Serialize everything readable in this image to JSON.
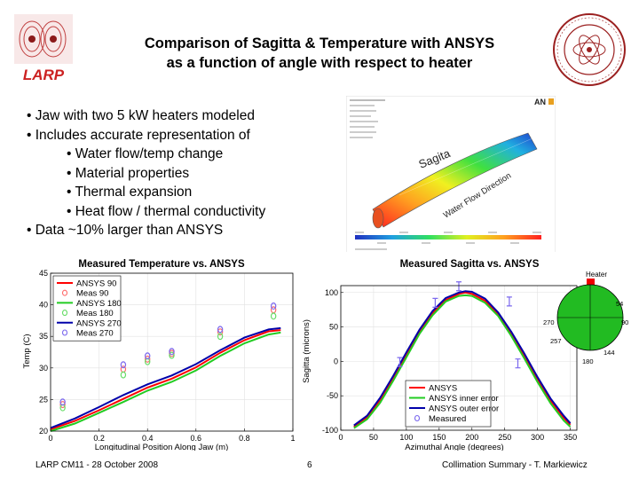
{
  "slide": {
    "title_line1": "Comparison of Sagitta & Temperature with ANSYS",
    "title_line2": "as a function of angle with respect to heater",
    "logo_text": "LARP",
    "bullets": [
      {
        "level": 1,
        "text": "• Jaw with two 5 kW heaters modeled"
      },
      {
        "level": 1,
        "text": "• Includes accurate representation of"
      },
      {
        "level": 2,
        "text": "• Water flow/temp change"
      },
      {
        "level": 2,
        "text": "• Material properties"
      },
      {
        "level": 2,
        "text": "• Thermal expansion"
      },
      {
        "level": 2,
        "text": "• Heat flow / thermal conductivity"
      },
      {
        "level": 1,
        "text": "• Data ~10% larger than ANSYS"
      }
    ],
    "footer_left": "LARP CM11 -  28 October 2008",
    "footer_page": "6",
    "footer_right": "Collimation Summary -   T. Markiewicz"
  },
  "ansys_image": {
    "brand": "AN",
    "label_sagitta": "Sagita",
    "label_flow": "Water Flow Direction"
  },
  "polar_inset": {
    "label_top": "Heater",
    "labels": [
      "54",
      "90",
      "270",
      "257",
      "144",
      "180"
    ]
  },
  "colors": {
    "ansys_red": "#ff0000",
    "meas_red": "#ff6a6a",
    "ansys_green": "#22cc22",
    "meas_green": "#66dd66",
    "ansys_blue": "#0000aa",
    "meas_purple": "#7b68ee",
    "slide_red": "#cc2222"
  },
  "chart_data": [
    {
      "type": "line",
      "title": "Measured Temperature  vs. ANSYS",
      "xlabel": "Longitudinal Position Along Jaw (m)",
      "ylabel": "Temp (C)",
      "xlim": [
        0,
        1
      ],
      "ylim": [
        20,
        45
      ],
      "xticks": [
        "0",
        "0.2",
        "0.4",
        "0.6",
        "0.8",
        "1"
      ],
      "yticks": [
        "20",
        "25",
        "30",
        "35",
        "40",
        "45"
      ],
      "legend_position": "top-left",
      "series": [
        {
          "name": "ANSYS 90",
          "style": "line",
          "color": "#ff0000",
          "x": [
            0,
            0.1,
            0.2,
            0.3,
            0.4,
            0.5,
            0.6,
            0.7,
            0.8,
            0.9,
            0.95
          ],
          "y": [
            20.3,
            21.6,
            23.3,
            25.1,
            26.9,
            28.3,
            30.1,
            32.4,
            34.4,
            35.8,
            36.0
          ]
        },
        {
          "name": "Meas 90",
          "style": "marker",
          "color": "#ff6a6a",
          "x": [
            0.05,
            0.3,
            0.4,
            0.5,
            0.7,
            0.92
          ],
          "y": [
            24.2,
            29.8,
            31.4,
            32.3,
            35.7,
            39.2
          ]
        },
        {
          "name": "ANSYS 180",
          "style": "line",
          "color": "#22cc22",
          "x": [
            0,
            0.1,
            0.2,
            0.3,
            0.4,
            0.5,
            0.6,
            0.7,
            0.8,
            0.9,
            0.95
          ],
          "y": [
            20.0,
            21.2,
            22.9,
            24.6,
            26.4,
            27.8,
            29.6,
            31.9,
            33.9,
            35.3,
            35.6
          ]
        },
        {
          "name": "Meas 180",
          "style": "marker",
          "color": "#66dd66",
          "x": [
            0.05,
            0.3,
            0.4,
            0.5,
            0.7,
            0.92
          ],
          "y": [
            23.7,
            28.9,
            31.0,
            32.0,
            35.0,
            38.2
          ]
        },
        {
          "name": "ANSYS 270",
          "style": "line",
          "color": "#0000aa",
          "x": [
            0,
            0.1,
            0.2,
            0.3,
            0.4,
            0.5,
            0.6,
            0.7,
            0.8,
            0.9,
            0.95
          ],
          "y": [
            20.5,
            22.0,
            23.8,
            25.7,
            27.4,
            28.8,
            30.6,
            32.8,
            34.8,
            36.1,
            36.3
          ]
        },
        {
          "name": "Meas 270",
          "style": "marker",
          "color": "#7b68ee",
          "x": [
            0.05,
            0.3,
            0.4,
            0.5,
            0.7,
            0.92
          ],
          "y": [
            24.6,
            30.5,
            31.9,
            32.6,
            36.1,
            39.8
          ]
        }
      ]
    },
    {
      "type": "line",
      "title": "Measured Sagitta  vs. ANSYS",
      "xlabel": "Azimuthal Angle (degrees)",
      "ylabel": "Sagitta (microns)",
      "xlim": [
        0,
        360
      ],
      "ylim": [
        -100,
        110
      ],
      "xticks": [
        "0",
        "50",
        "100",
        "150",
        "200",
        "250",
        "300",
        "350"
      ],
      "yticks": [
        "-100",
        "-50",
        "0",
        "50",
        "100"
      ],
      "legend_position": "bottom-right",
      "series": [
        {
          "name": "ANSYS",
          "style": "line",
          "color": "#ff0000",
          "x": [
            20,
            40,
            60,
            80,
            100,
            120,
            140,
            160,
            180,
            190,
            200,
            220,
            240,
            260,
            280,
            300,
            320,
            340,
            350
          ],
          "y": [
            -95,
            -81,
            -56,
            -24,
            10,
            43,
            70,
            89,
            98,
            100,
            98,
            88,
            68,
            40,
            8,
            -26,
            -57,
            -82,
            -92
          ]
        },
        {
          "name": "ANSYS inner error",
          "style": "line",
          "color": "#22cc22",
          "x": [
            20,
            40,
            60,
            80,
            100,
            120,
            140,
            160,
            180,
            190,
            200,
            220,
            240,
            260,
            280,
            300,
            320,
            340,
            350
          ],
          "y": [
            -97,
            -84,
            -60,
            -28,
            6,
            40,
            67,
            87,
            95,
            96,
            95,
            85,
            66,
            37,
            4,
            -30,
            -61,
            -86,
            -95
          ]
        },
        {
          "name": "ANSYS outer error",
          "style": "line",
          "color": "#0000aa",
          "x": [
            20,
            40,
            60,
            80,
            100,
            120,
            140,
            160,
            180,
            190,
            200,
            220,
            240,
            260,
            280,
            300,
            320,
            340,
            350
          ],
          "y": [
            -93,
            -79,
            -53,
            -21,
            13,
            46,
            73,
            92,
            100,
            102,
            101,
            91,
            71,
            43,
            11,
            -23,
            -54,
            -79,
            -90
          ]
        },
        {
          "name": "Measured",
          "style": "marker",
          "color": "#7b68ee",
          "x": [
            90,
            144,
            180,
            257,
            270
          ],
          "y": [
            -1,
            85,
            109,
            87,
            -3
          ]
        }
      ]
    }
  ]
}
